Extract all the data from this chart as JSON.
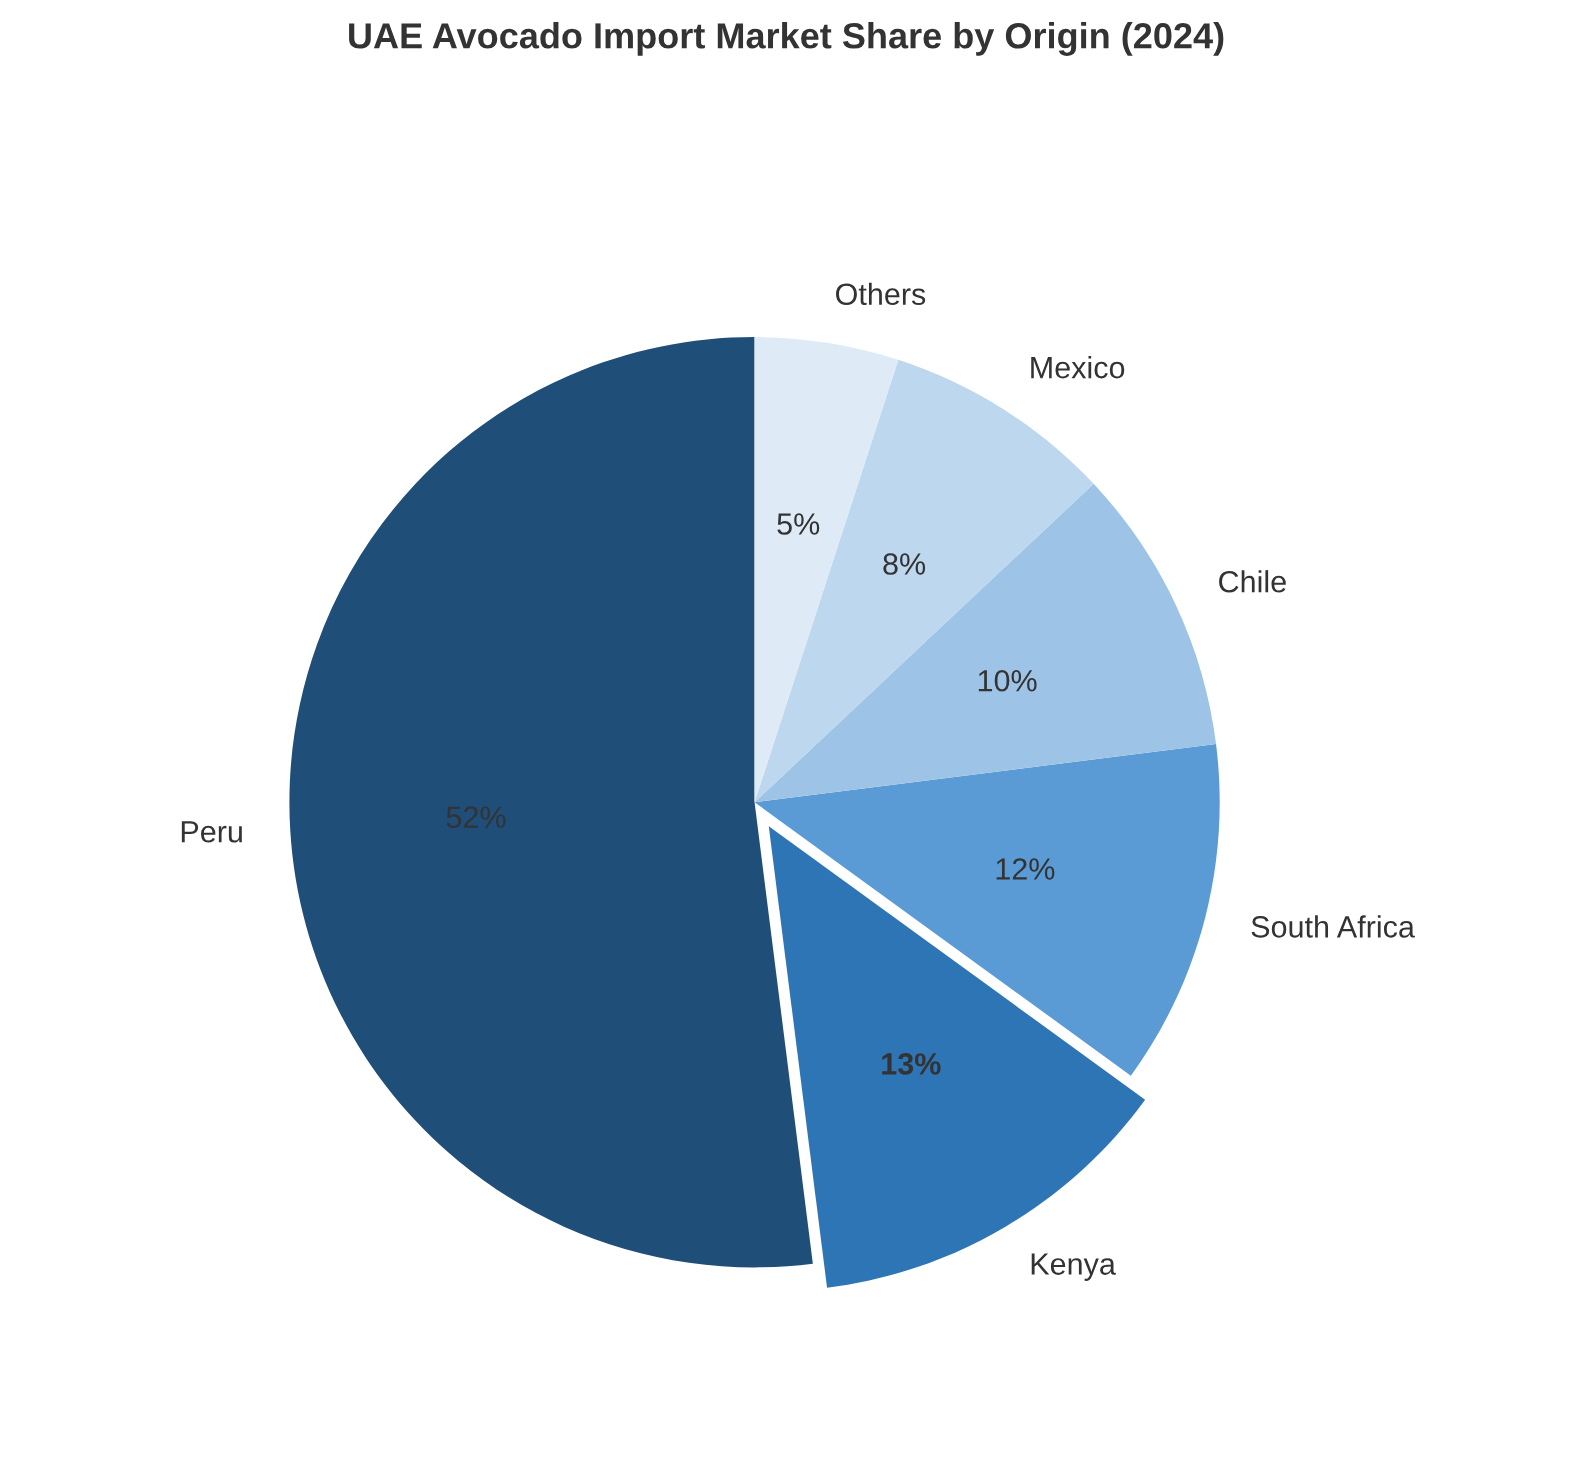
{
  "chart_data": {
    "type": "pie",
    "title": "UAE Avocado Import Market Share by Origin (2024)",
    "categories": [
      "Peru",
      "Kenya",
      "South Africa",
      "Chile",
      "Mexico",
      "Others"
    ],
    "values": [
      52,
      13,
      12,
      10,
      8,
      5
    ],
    "colors": [
      "#1f4e79",
      "#2e75b6",
      "#5b9bd5",
      "#9dc3e6",
      "#bdd7ee",
      "#deebf7"
    ],
    "value_labels": [
      "52%",
      "13%",
      "12%",
      "10%",
      "8%",
      "5%"
    ]
  }
}
